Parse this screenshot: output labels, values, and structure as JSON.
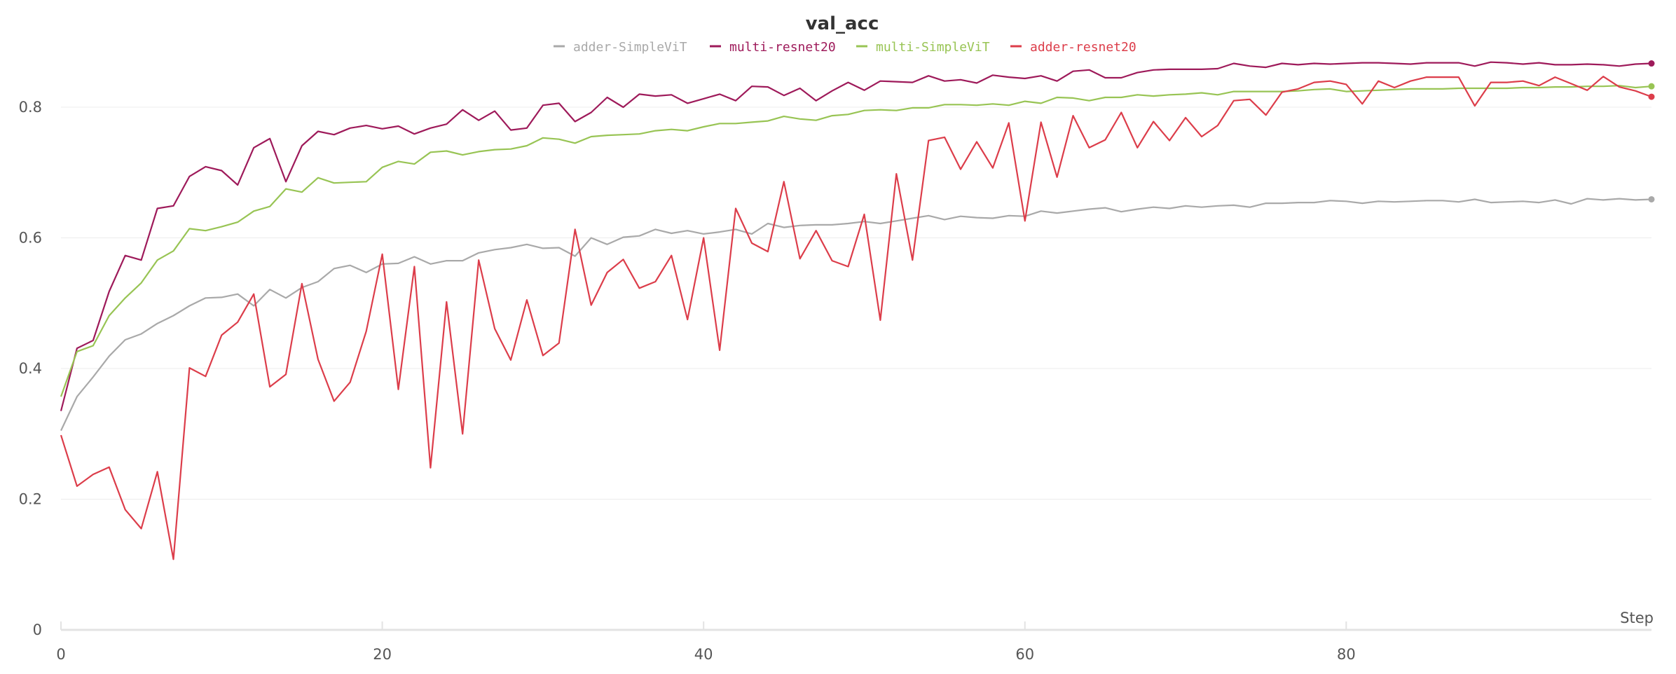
{
  "chart_data": {
    "type": "line",
    "title": "val_acc",
    "xlabel": "Step",
    "ylabel": "",
    "xlim": [
      0,
      99
    ],
    "ylim": [
      0,
      0.9
    ],
    "xticks": [
      0,
      20,
      40,
      60,
      80
    ],
    "yticks": [
      0,
      0.2,
      0.4,
      0.6,
      0.8
    ],
    "xtick_labels": [
      "0",
      "20",
      "40",
      "60",
      "80"
    ],
    "ytick_labels": [
      "0",
      "0.2",
      "0.4",
      "0.6",
      "0.8"
    ],
    "grid": "horizontal",
    "legend_position": "top-center",
    "series": [
      {
        "name": "adder-SimpleViT",
        "color": "#a9a9a9",
        "values": [
          0.305,
          0.357,
          0.387,
          0.419,
          0.444,
          0.453,
          0.469,
          0.481,
          0.496,
          0.508,
          0.509,
          0.514,
          0.496,
          0.521,
          0.508,
          0.524,
          0.533,
          0.553,
          0.558,
          0.547,
          0.56,
          0.561,
          0.571,
          0.56,
          0.565,
          0.565,
          0.577,
          0.582,
          0.585,
          0.59,
          0.584,
          0.585,
          0.572,
          0.6,
          0.59,
          0.601,
          0.603,
          0.613,
          0.607,
          0.611,
          0.606,
          0.609,
          0.613,
          0.606,
          0.622,
          0.616,
          0.619,
          0.62,
          0.62,
          0.622,
          0.625,
          0.622,
          0.626,
          0.63,
          0.634,
          0.628,
          0.633,
          0.631,
          0.63,
          0.634,
          0.633,
          0.641,
          0.638,
          0.641,
          0.644,
          0.646,
          0.64,
          0.644,
          0.647,
          0.645,
          0.649,
          0.647,
          0.649,
          0.65,
          0.647,
          0.653,
          0.653,
          0.654,
          0.654,
          0.657,
          0.656,
          0.653,
          0.656,
          0.655,
          0.656,
          0.657,
          0.657,
          0.655,
          0.659,
          0.654,
          0.655,
          0.656,
          0.654,
          0.658,
          0.652,
          0.66,
          0.658,
          0.66,
          0.658,
          0.659
        ]
      },
      {
        "name": "multi-resnet20",
        "color": "#9e1a5a",
        "values": [
          0.335,
          0.431,
          0.443,
          0.518,
          0.573,
          0.566,
          0.645,
          0.649,
          0.694,
          0.709,
          0.703,
          0.681,
          0.738,
          0.752,
          0.686,
          0.741,
          0.763,
          0.758,
          0.768,
          0.772,
          0.767,
          0.771,
          0.759,
          0.768,
          0.774,
          0.796,
          0.78,
          0.794,
          0.765,
          0.768,
          0.803,
          0.806,
          0.778,
          0.792,
          0.815,
          0.8,
          0.82,
          0.817,
          0.819,
          0.806,
          0.813,
          0.82,
          0.81,
          0.832,
          0.831,
          0.818,
          0.829,
          0.81,
          0.825,
          0.838,
          0.826,
          0.84,
          0.839,
          0.838,
          0.848,
          0.84,
          0.842,
          0.837,
          0.849,
          0.846,
          0.844,
          0.848,
          0.84,
          0.855,
          0.857,
          0.845,
          0.845,
          0.853,
          0.857,
          0.858,
          0.858,
          0.858,
          0.859,
          0.867,
          0.863,
          0.861,
          0.867,
          0.865,
          0.867,
          0.866,
          0.867,
          0.868,
          0.868,
          0.867,
          0.866,
          0.868,
          0.868,
          0.868,
          0.863,
          0.869,
          0.868,
          0.866,
          0.868,
          0.865,
          0.865,
          0.866,
          0.865,
          0.863,
          0.866,
          0.867
        ]
      },
      {
        "name": "multi-SimpleViT",
        "color": "#98c454",
        "values": [
          0.357,
          0.426,
          0.435,
          0.481,
          0.508,
          0.531,
          0.566,
          0.58,
          0.614,
          0.611,
          0.617,
          0.624,
          0.641,
          0.648,
          0.675,
          0.67,
          0.692,
          0.684,
          0.685,
          0.686,
          0.708,
          0.717,
          0.713,
          0.731,
          0.733,
          0.727,
          0.732,
          0.735,
          0.736,
          0.741,
          0.753,
          0.751,
          0.745,
          0.755,
          0.757,
          0.758,
          0.759,
          0.764,
          0.766,
          0.764,
          0.77,
          0.775,
          0.775,
          0.777,
          0.779,
          0.786,
          0.782,
          0.78,
          0.787,
          0.789,
          0.795,
          0.796,
          0.795,
          0.799,
          0.799,
          0.804,
          0.804,
          0.803,
          0.805,
          0.803,
          0.809,
          0.806,
          0.815,
          0.814,
          0.81,
          0.815,
          0.815,
          0.819,
          0.817,
          0.819,
          0.82,
          0.822,
          0.819,
          0.824,
          0.824,
          0.824,
          0.824,
          0.825,
          0.827,
          0.828,
          0.824,
          0.825,
          0.826,
          0.827,
          0.828,
          0.828,
          0.828,
          0.829,
          0.829,
          0.829,
          0.829,
          0.83,
          0.83,
          0.831,
          0.831,
          0.832,
          0.832,
          0.833,
          0.83,
          0.832
        ]
      },
      {
        "name": "adder-resnet20",
        "color": "#dc3d4a",
        "values": [
          0.298,
          0.22,
          0.238,
          0.249,
          0.184,
          0.155,
          0.242,
          0.108,
          0.401,
          0.388,
          0.451,
          0.471,
          0.514,
          0.372,
          0.391,
          0.53,
          0.414,
          0.35,
          0.379,
          0.457,
          0.575,
          0.368,
          0.556,
          0.248,
          0.502,
          0.3,
          0.566,
          0.461,
          0.413,
          0.505,
          0.42,
          0.439,
          0.613,
          0.497,
          0.547,
          0.567,
          0.523,
          0.533,
          0.573,
          0.475,
          0.6,
          0.428,
          0.645,
          0.592,
          0.579,
          0.686,
          0.568,
          0.611,
          0.565,
          0.556,
          0.636,
          0.474,
          0.698,
          0.566,
          0.749,
          0.754,
          0.705,
          0.747,
          0.707,
          0.776,
          0.626,
          0.777,
          0.693,
          0.787,
          0.738,
          0.75,
          0.792,
          0.738,
          0.778,
          0.749,
          0.784,
          0.755,
          0.772,
          0.81,
          0.812,
          0.788,
          0.823,
          0.828,
          0.838,
          0.84,
          0.835,
          0.805,
          0.84,
          0.83,
          0.84,
          0.846,
          0.846,
          0.846,
          0.802,
          0.838,
          0.838,
          0.84,
          0.833,
          0.846,
          0.836,
          0.826,
          0.847,
          0.831,
          0.825,
          0.816
        ]
      }
    ]
  }
}
